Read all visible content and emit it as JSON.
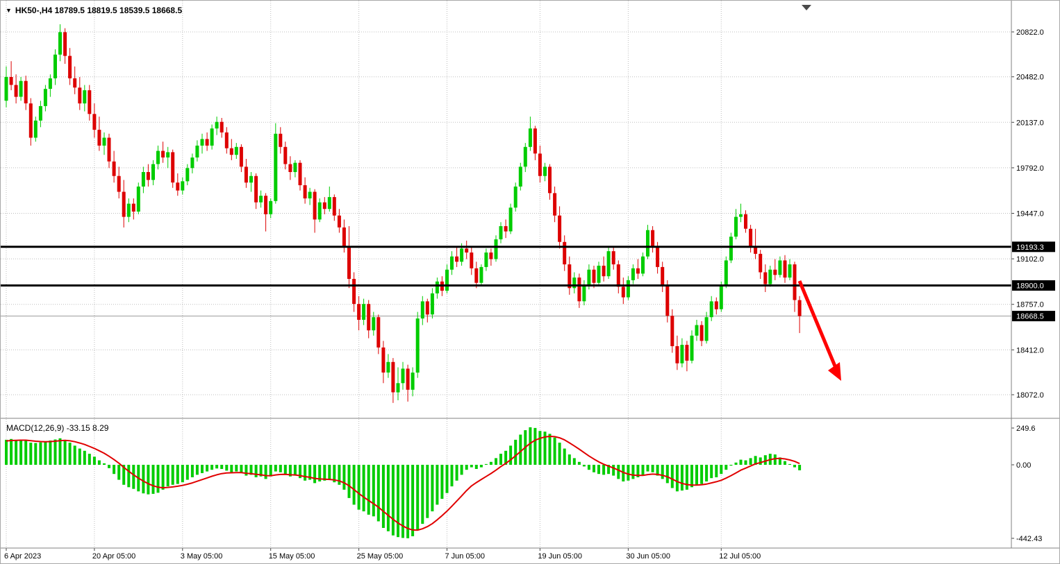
{
  "header": {
    "title": "HK50-,H4  18789.5 18819.5 18539.5 18668.5",
    "symbol": "HK50-",
    "timeframe": "H4"
  },
  "colors": {
    "background": "#ffffff",
    "up": "#00cc00",
    "down": "#dd0000",
    "histogram": "#00cc00",
    "signal_line": "#e00000",
    "level_line": "#000000",
    "arrow": "#ff0000",
    "grid": "#bdbdbd",
    "axis_text": "#000000",
    "tag_bg": "#000000",
    "tag_text": "#ffffff"
  },
  "chart_data": {
    "type": "candlestick",
    "title": "HK50-,H4",
    "symbol": "HK50-",
    "timeframe": "H4",
    "last_ohlc": {
      "open": "18789.5",
      "high": "18819.5",
      "low": "18539.5",
      "close": "18668.5"
    },
    "price_axis_ticks": [
      "20822.0",
      "20482.0",
      "20137.0",
      "19792.0",
      "19447.0",
      "19102.0",
      "18757.0",
      "18412.0",
      "18072.0"
    ],
    "price_axis_range": [
      17900,
      20900
    ],
    "level_lines": [
      "19193.3",
      "18900.0"
    ],
    "current_price": "18668.5",
    "time_axis_labels": [
      {
        "text": "6 Apr 2023",
        "index": 0
      },
      {
        "text": "20 Apr 05:00",
        "index": 18
      },
      {
        "text": "3 May 05:00",
        "index": 36
      },
      {
        "text": "15 May 05:00",
        "index": 54
      },
      {
        "text": "25 May 05:00",
        "index": 72
      },
      {
        "text": "7 Jun 05:00",
        "index": 90
      },
      {
        "text": "19 Jun 05:00",
        "index": 109
      },
      {
        "text": "30 Jun 05:00",
        "index": 127
      },
      {
        "text": "12 Jul 05:00",
        "index": 146
      }
    ],
    "candles": [
      [
        20300,
        20560,
        20250,
        20480
      ],
      [
        20480,
        20600,
        20380,
        20420
      ],
      [
        20420,
        20500,
        20280,
        20330
      ],
      [
        20330,
        20480,
        20300,
        20450
      ],
      [
        20450,
        20490,
        20230,
        20280
      ],
      [
        20280,
        20320,
        19960,
        20020
      ],
      [
        20020,
        20180,
        19990,
        20150
      ],
      [
        20150,
        20300,
        20100,
        20260
      ],
      [
        20260,
        20420,
        20220,
        20390
      ],
      [
        20390,
        20500,
        20330,
        20470
      ],
      [
        20470,
        20690,
        20420,
        20650
      ],
      [
        20650,
        20880,
        20600,
        20820
      ],
      [
        20820,
        20850,
        20580,
        20640
      ],
      [
        20640,
        20700,
        20420,
        20470
      ],
      [
        20470,
        20560,
        20350,
        20400
      ],
      [
        20400,
        20480,
        20230,
        20280
      ],
      [
        20280,
        20420,
        20220,
        20380
      ],
      [
        20380,
        20420,
        20150,
        20200
      ],
      [
        20200,
        20280,
        20020,
        20080
      ],
      [
        20080,
        20180,
        19920,
        19960
      ],
      [
        19960,
        20060,
        19890,
        20020
      ],
      [
        20020,
        20050,
        19790,
        19840
      ],
      [
        19840,
        19920,
        19680,
        19730
      ],
      [
        19730,
        19800,
        19560,
        19610
      ],
      [
        19610,
        19700,
        19340,
        19420
      ],
      [
        19420,
        19560,
        19380,
        19520
      ],
      [
        19520,
        19560,
        19400,
        19460
      ],
      [
        19460,
        19680,
        19440,
        19650
      ],
      [
        19650,
        19800,
        19600,
        19760
      ],
      [
        19760,
        19820,
        19650,
        19700
      ],
      [
        19700,
        19850,
        19660,
        19820
      ],
      [
        19820,
        19960,
        19780,
        19920
      ],
      [
        19920,
        19990,
        19830,
        19870
      ],
      [
        19870,
        19950,
        19790,
        19910
      ],
      [
        19910,
        19930,
        19640,
        19680
      ],
      [
        19680,
        19750,
        19580,
        19620
      ],
      [
        19620,
        19720,
        19590,
        19690
      ],
      [
        19690,
        19820,
        19660,
        19790
      ],
      [
        19790,
        19900,
        19750,
        19870
      ],
      [
        19870,
        20000,
        19840,
        19960
      ],
      [
        19960,
        20050,
        19900,
        20010
      ],
      [
        20010,
        20060,
        19920,
        19960
      ],
      [
        19960,
        20120,
        19930,
        20090
      ],
      [
        20090,
        20180,
        20040,
        20140
      ],
      [
        20140,
        20170,
        20020,
        20060
      ],
      [
        20060,
        20100,
        19900,
        19940
      ],
      [
        19940,
        20010,
        19850,
        19890
      ],
      [
        19890,
        19980,
        19860,
        19950
      ],
      [
        19950,
        19970,
        19760,
        19800
      ],
      [
        19800,
        19860,
        19640,
        19680
      ],
      [
        19680,
        19760,
        19610,
        19730
      ],
      [
        19730,
        19750,
        19480,
        19530
      ],
      [
        19530,
        19620,
        19490,
        19580
      ],
      [
        19580,
        19600,
        19310,
        19440
      ],
      [
        19440,
        19560,
        19410,
        19540
      ],
      [
        19540,
        20130,
        19520,
        20050
      ],
      [
        20050,
        20100,
        19900,
        19950
      ],
      [
        19950,
        19990,
        19780,
        19820
      ],
      [
        19820,
        19880,
        19700,
        19760
      ],
      [
        19760,
        19850,
        19720,
        19830
      ],
      [
        19830,
        19850,
        19620,
        19660
      ],
      [
        19660,
        19720,
        19520,
        19560
      ],
      [
        19560,
        19640,
        19510,
        19610
      ],
      [
        19610,
        19630,
        19300,
        19400
      ],
      [
        19400,
        19560,
        19380,
        19530
      ],
      [
        19530,
        19570,
        19440,
        19480
      ],
      [
        19480,
        19650,
        19460,
        19570
      ],
      [
        19570,
        19590,
        19390,
        19430
      ],
      [
        19430,
        19480,
        19300,
        19340
      ],
      [
        19340,
        19400,
        19150,
        19200
      ],
      [
        19200,
        19350,
        18880,
        18950
      ],
      [
        18950,
        19000,
        18700,
        18760
      ],
      [
        18760,
        18820,
        18560,
        18640
      ],
      [
        18640,
        18800,
        18600,
        18760
      ],
      [
        18760,
        18790,
        18500,
        18560
      ],
      [
        18560,
        18700,
        18520,
        18660
      ],
      [
        18660,
        18680,
        18380,
        18430
      ],
      [
        18430,
        18480,
        18160,
        18240
      ],
      [
        18240,
        18380,
        18200,
        18320
      ],
      [
        18320,
        18350,
        18010,
        18090
      ],
      [
        18090,
        18280,
        18030,
        18160
      ],
      [
        18160,
        18320,
        18110,
        18270
      ],
      [
        18270,
        18300,
        18020,
        18110
      ],
      [
        18110,
        18280,
        18060,
        18240
      ],
      [
        18240,
        18700,
        18200,
        18650
      ],
      [
        18650,
        18820,
        18600,
        18780
      ],
      [
        18780,
        18800,
        18620,
        18680
      ],
      [
        18680,
        18880,
        18650,
        18840
      ],
      [
        18840,
        18960,
        18800,
        18930
      ],
      [
        18930,
        18970,
        18820,
        18860
      ],
      [
        18860,
        19060,
        18840,
        19020
      ],
      [
        19020,
        19160,
        18980,
        19120
      ],
      [
        19120,
        19200,
        19040,
        19080
      ],
      [
        19080,
        19220,
        19050,
        19180
      ],
      [
        19180,
        19240,
        19100,
        19150
      ],
      [
        19150,
        19200,
        18980,
        19030
      ],
      [
        19030,
        19080,
        18880,
        18920
      ],
      [
        18920,
        19060,
        18900,
        19040
      ],
      [
        19040,
        19180,
        19010,
        19150
      ],
      [
        19150,
        19180,
        19050,
        19100
      ],
      [
        19100,
        19280,
        19080,
        19250
      ],
      [
        19250,
        19380,
        19220,
        19350
      ],
      [
        19350,
        19400,
        19260,
        19310
      ],
      [
        19310,
        19520,
        19290,
        19490
      ],
      [
        19490,
        19680,
        19460,
        19650
      ],
      [
        19650,
        19830,
        19620,
        19800
      ],
      [
        19800,
        19980,
        19760,
        19950
      ],
      [
        19950,
        20180,
        19920,
        20090
      ],
      [
        20090,
        20110,
        19850,
        19900
      ],
      [
        19900,
        19960,
        19680,
        19730
      ],
      [
        19730,
        19830,
        19690,
        19800
      ],
      [
        19800,
        19820,
        19550,
        19600
      ],
      [
        19600,
        19650,
        19380,
        19430
      ],
      [
        19430,
        19500,
        19180,
        19230
      ],
      [
        19230,
        19280,
        19010,
        19060
      ],
      [
        19060,
        19120,
        18830,
        18880
      ],
      [
        18880,
        19000,
        18840,
        18960
      ],
      [
        18960,
        18990,
        18730,
        18780
      ],
      [
        18780,
        18940,
        18750,
        18900
      ],
      [
        18900,
        19060,
        18870,
        19020
      ],
      [
        19020,
        19050,
        18880,
        18920
      ],
      [
        18920,
        19080,
        18900,
        19050
      ],
      [
        19050,
        19120,
        18930,
        18970
      ],
      [
        18970,
        19200,
        18950,
        19160
      ],
      [
        19160,
        19190,
        19020,
        19060
      ],
      [
        19060,
        19090,
        18840,
        18890
      ],
      [
        18890,
        18960,
        18760,
        18810
      ],
      [
        18810,
        18970,
        18790,
        18940
      ],
      [
        18940,
        19060,
        18910,
        19030
      ],
      [
        19030,
        19100,
        18950,
        18990
      ],
      [
        18990,
        19150,
        18970,
        19120
      ],
      [
        19120,
        19360,
        19100,
        19320
      ],
      [
        19320,
        19350,
        19150,
        19190
      ],
      [
        19190,
        19230,
        18990,
        19040
      ],
      [
        19040,
        19080,
        18850,
        18900
      ],
      [
        18900,
        18940,
        18620,
        18670
      ],
      [
        18670,
        18720,
        18390,
        18440
      ],
      [
        18440,
        18520,
        18260,
        18310
      ],
      [
        18310,
        18500,
        18280,
        18450
      ],
      [
        18450,
        18480,
        18250,
        18330
      ],
      [
        18330,
        18560,
        18310,
        18520
      ],
      [
        18520,
        18640,
        18480,
        18600
      ],
      [
        18600,
        18630,
        18440,
        18480
      ],
      [
        18480,
        18700,
        18460,
        18660
      ],
      [
        18660,
        18820,
        18630,
        18780
      ],
      [
        18780,
        18810,
        18680,
        18720
      ],
      [
        18720,
        18930,
        18700,
        18900
      ],
      [
        18900,
        19120,
        18880,
        19090
      ],
      [
        19090,
        19300,
        19070,
        19270
      ],
      [
        19270,
        19480,
        19250,
        19420
      ],
      [
        19420,
        19520,
        19380,
        19440
      ],
      [
        19440,
        19470,
        19300,
        19330
      ],
      [
        19330,
        19360,
        19150,
        19190
      ],
      [
        19190,
        19330,
        19100,
        19140
      ],
      [
        19140,
        19170,
        18950,
        19000
      ],
      [
        19000,
        19060,
        18850,
        18910
      ],
      [
        18910,
        19050,
        18890,
        19020
      ],
      [
        19020,
        19100,
        18940,
        18980
      ],
      [
        18980,
        19120,
        18960,
        19090
      ],
      [
        19090,
        19130,
        18920,
        18960
      ],
      [
        18960,
        19100,
        18940,
        19060
      ],
      [
        19060,
        19080,
        18700,
        18790
      ],
      [
        18789.5,
        18819.5,
        18539.5,
        18668.5
      ]
    ],
    "macd": {
      "label": "MACD(12,26,9) -33.15 8.29",
      "main_value": -33.15,
      "signal_value": 8.29,
      "axis_ticks": [
        "249.6",
        "0.00",
        "-442.43"
      ],
      "axis_range": [
        -442.43,
        249.6
      ],
      "histogram": [
        170,
        175,
        168,
        172,
        165,
        150,
        148,
        152,
        158,
        165,
        172,
        180,
        168,
        150,
        130,
        110,
        95,
        75,
        55,
        30,
        10,
        -20,
        -55,
        -90,
        -120,
        -135,
        -145,
        -160,
        -172,
        -178,
        -175,
        -168,
        -150,
        -130,
        -120,
        -115,
        -105,
        -90,
        -75,
        -60,
        -50,
        -40,
        -30,
        -22,
        -25,
        -35,
        -45,
        -40,
        -50,
        -65,
        -60,
        -75,
        -70,
        -85,
        -70,
        -40,
        -45,
        -55,
        -70,
        -65,
        -80,
        -95,
        -90,
        -110,
        -100,
        -95,
        -90,
        -105,
        -120,
        -150,
        -200,
        -240,
        -270,
        -280,
        -300,
        -310,
        -340,
        -380,
        -400,
        -425,
        -435,
        -440,
        -442,
        -430,
        -395,
        -355,
        -320,
        -280,
        -240,
        -205,
        -170,
        -130,
        -95,
        -60,
        -30,
        -15,
        -25,
        -15,
        5,
        20,
        45,
        75,
        95,
        130,
        170,
        205,
        235,
        255,
        250,
        230,
        225,
        210,
        185,
        150,
        110,
        70,
        45,
        20,
        -10,
        -30,
        -45,
        -55,
        -60,
        -55,
        -65,
        -85,
        -100,
        -95,
        -85,
        -75,
        -60,
        -40,
        -45,
        -65,
        -85,
        -110,
        -140,
        -160,
        -155,
        -150,
        -135,
        -120,
        -115,
        -100,
        -80,
        -75,
        -55,
        -30,
        -5,
        15,
        35,
        30,
        45,
        60,
        50,
        65,
        75,
        70,
        50,
        25,
        5,
        -15,
        -33.15
      ],
      "signal": [
        162,
        165,
        166,
        167,
        167,
        164,
        160,
        158,
        157,
        158,
        160,
        164,
        166,
        163,
        157,
        148,
        138,
        125,
        111,
        95,
        78,
        58,
        36,
        11,
        -15,
        -39,
        -60,
        -80,
        -98,
        -114,
        -126,
        -135,
        -138,
        -136,
        -133,
        -129,
        -124,
        -117,
        -109,
        -99,
        -89,
        -79,
        -69,
        -60,
        -53,
        -49,
        -48,
        -47,
        -47,
        -51,
        -53,
        -57,
        -60,
        -65,
        -66,
        -61,
        -58,
        -57,
        -60,
        -61,
        -65,
        -71,
        -75,
        -82,
        -85,
        -87,
        -88,
        -91,
        -97,
        -108,
        -126,
        -149,
        -173,
        -194,
        -215,
        -234,
        -255,
        -280,
        -304,
        -328,
        -350,
        -368,
        -383,
        -392,
        -393,
        -385,
        -372,
        -354,
        -331,
        -306,
        -279,
        -249,
        -218,
        -187,
        -155,
        -127,
        -107,
        -88,
        -70,
        -52,
        -32,
        -11,
        10,
        34,
        61,
        90,
        119,
        146,
        167,
        180,
        189,
        193,
        191,
        183,
        169,
        149,
        128,
        106,
        83,
        60,
        39,
        20,
        4,
        -8,
        -19,
        -32,
        -46,
        -56,
        -62,
        -64,
        -64,
        -59,
        -56,
        -58,
        -63,
        -72,
        -86,
        -101,
        -112,
        -119,
        -122,
        -122,
        -120,
        -116,
        -109,
        -102,
        -93,
        -80,
        -65,
        -49,
        -32,
        -20,
        -7,
        6,
        15,
        25,
        35,
        42,
        44,
        40,
        33,
        23,
        8.29
      ]
    },
    "annotations": {
      "arrow": {
        "direction": "down-right",
        "color": "#ff0000",
        "meaning": "bearish-projection"
      }
    }
  }
}
